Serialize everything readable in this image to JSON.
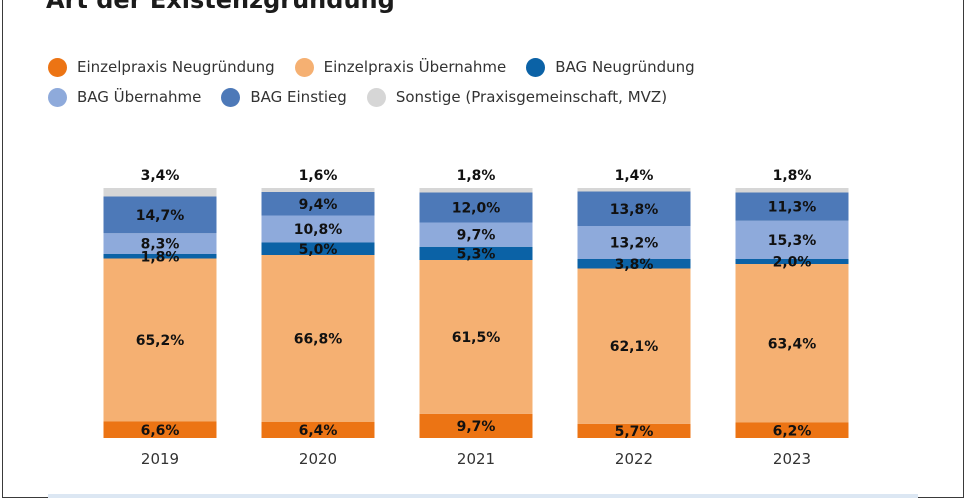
{
  "title": "Art der Existenzgründung",
  "colors": {
    "einzelpraxis_neugruendung": "#ec7414",
    "einzelpraxis_uebernahme": "#f5b072",
    "bag_neugruendung": "#0b62a6",
    "bag_uebernahme": "#8eaadb",
    "bag_einstieg": "#4d79b8",
    "sonstige": "#d6d6d6"
  },
  "chart_data": {
    "type": "bar",
    "stacked": true,
    "categories": [
      "2019",
      "2020",
      "2021",
      "2022",
      "2023"
    ],
    "series": [
      {
        "name": "Einzelpraxis Neugründung",
        "values": [
          6.6,
          6.4,
          9.7,
          5.7,
          6.2
        ],
        "labels": [
          "6,6%",
          "6,4%",
          "9,7%",
          "5,7%",
          "6,2%"
        ],
        "color": "#ec7414"
      },
      {
        "name": "Einzelpraxis Übernahme",
        "values": [
          65.2,
          66.8,
          61.5,
          62.1,
          63.4
        ],
        "labels": [
          "65,2%",
          "66,8%",
          "61,5%",
          "62,1%",
          "63,4%"
        ],
        "color": "#f5b072"
      },
      {
        "name": "BAG Neugründung",
        "values": [
          1.8,
          5.0,
          5.3,
          3.8,
          2.0
        ],
        "labels": [
          "1,8%",
          "5,0%",
          "5,3%",
          "3,8%",
          "2,0%"
        ],
        "color": "#0b62a6"
      },
      {
        "name": "BAG Übernahme",
        "values": [
          8.3,
          10.8,
          9.7,
          13.2,
          15.3
        ],
        "labels": [
          "8,3%",
          "10,8%",
          "9,7%",
          "13,2%",
          "15,3%"
        ],
        "color": "#8eaadb"
      },
      {
        "name": "BAG Einstieg",
        "values": [
          14.7,
          9.4,
          12.0,
          13.8,
          11.3
        ],
        "labels": [
          "14,7%",
          "9,4%",
          "12,0%",
          "13,8%",
          "11,3%"
        ],
        "color": "#4d79b8"
      },
      {
        "name": "Sonstige (Praxisgemeinschaft, MVZ)",
        "values": [
          3.4,
          1.6,
          1.8,
          1.4,
          1.8
        ],
        "labels": [
          "3,4%",
          "1,6%",
          "1,8%",
          "1,4%",
          "1,8%"
        ],
        "color": "#d6d6d6"
      }
    ],
    "ylim": [
      0,
      100
    ],
    "grid": false,
    "legend_position": "top-left"
  }
}
